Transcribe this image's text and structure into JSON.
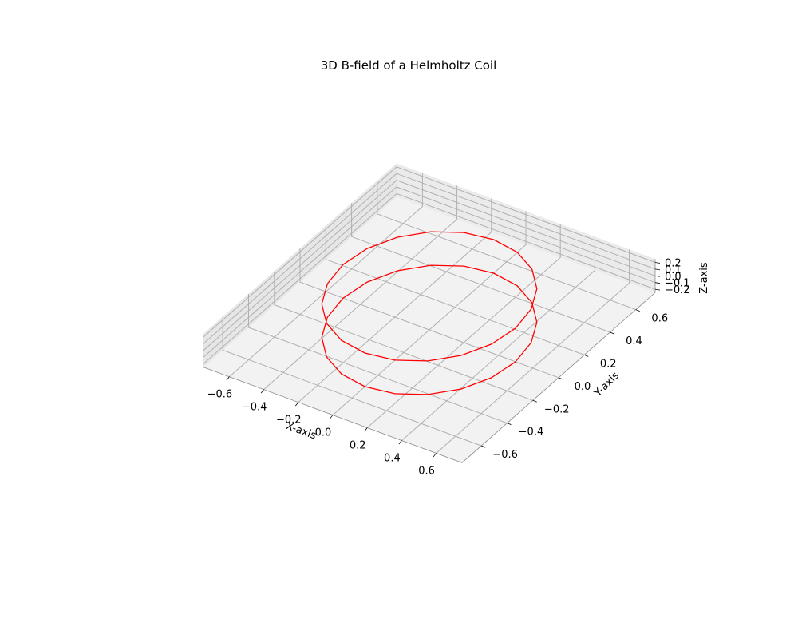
{
  "chart_data": {
    "type": "line",
    "title": "3D B-field of a Helmholtz Coil",
    "xlabel": "X-axis",
    "ylabel": "Y-axis",
    "zlabel": "Z-axis",
    "xlim": [
      -0.75,
      0.75
    ],
    "ylim": [
      -0.75,
      0.75
    ],
    "zlim": [
      -0.25,
      0.25
    ],
    "x_ticks": [
      "−0.6",
      "−0.4",
      "−0.2",
      "0.0",
      "0.2",
      "0.4",
      "0.6"
    ],
    "y_ticks": [
      "−0.6",
      "−0.4",
      "−0.2",
      "0.0",
      "0.2",
      "0.4",
      "0.6"
    ],
    "z_ticks": [
      "−0.2",
      "−0.1",
      "0.0",
      "0.1",
      "0.2"
    ],
    "grid": true,
    "series": [
      {
        "shape": "circle",
        "center": [
          0,
          0,
          0.25
        ],
        "radius": 0.5,
        "segments": 20,
        "color": "#ff0000"
      },
      {
        "shape": "circle",
        "center": [
          0,
          0,
          -0.25
        ],
        "radius": 0.5,
        "segments": 20,
        "color": "#ff0000"
      }
    ]
  }
}
